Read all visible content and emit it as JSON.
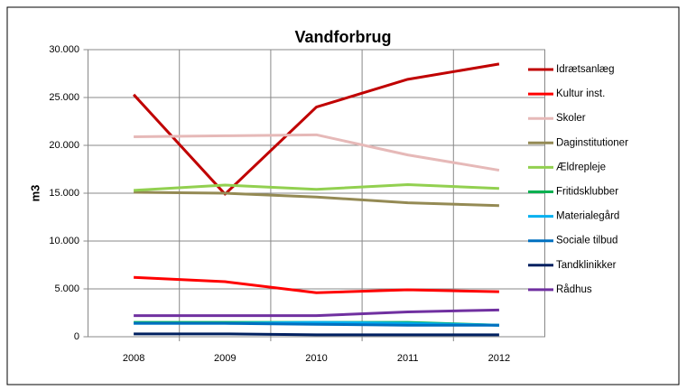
{
  "chart_data": {
    "type": "line",
    "title": "Vandforbrug",
    "y_label": "m3",
    "categories": [
      "2008",
      "2009",
      "2010",
      "2011",
      "2012"
    ],
    "series": [
      {
        "name": "Idrætsanlæg",
        "color": "#c00000",
        "values": [
          25300,
          14900,
          24000,
          26900,
          28500
        ]
      },
      {
        "name": "Kultur inst.",
        "color": "#ff0000",
        "values": [
          6200,
          5750,
          4600,
          4900,
          4700
        ]
      },
      {
        "name": "Skoler",
        "color": "#e6b9b8",
        "values": [
          20900,
          21000,
          21100,
          19000,
          17400
        ]
      },
      {
        "name": "Daginstitutioner",
        "color": "#948a54",
        "values": [
          15100,
          15000,
          14600,
          14000,
          13700
        ]
      },
      {
        "name": "Ældrepleje",
        "color": "#92d050",
        "values": [
          15300,
          15850,
          15400,
          15900,
          15500
        ]
      },
      {
        "name": "Fritidsklubber",
        "color": "#00b050",
        "values": [
          1500,
          1500,
          1500,
          1500,
          1200
        ]
      },
      {
        "name": "Materialegård",
        "color": "#00b0f0",
        "values": [
          1400,
          1400,
          1500,
          1400,
          1200
        ]
      },
      {
        "name": "Sociale tilbud",
        "color": "#0070c0",
        "values": [
          1400,
          1400,
          1300,
          1200,
          1200
        ]
      },
      {
        "name": "Tandklinikker",
        "color": "#002060",
        "values": [
          300,
          300,
          200,
          200,
          200
        ]
      },
      {
        "name": "Rådhus",
        "color": "#7030a0",
        "values": [
          2200,
          2200,
          2200,
          2600,
          2800
        ]
      }
    ],
    "ylim": [
      0,
      30000
    ],
    "yticks": [
      0,
      {
        "value": 5000,
        "label": "5.000"
      },
      {
        "value": 10000,
        "label": "10.000"
      },
      {
        "value": 15000,
        "label": "15.000"
      },
      {
        "value": 20000,
        "label": "20.000"
      },
      {
        "value": 25000,
        "label": "25.000"
      },
      {
        "value": 30000,
        "label": "30.000"
      }
    ],
    "grid": true,
    "legend": "right"
  }
}
